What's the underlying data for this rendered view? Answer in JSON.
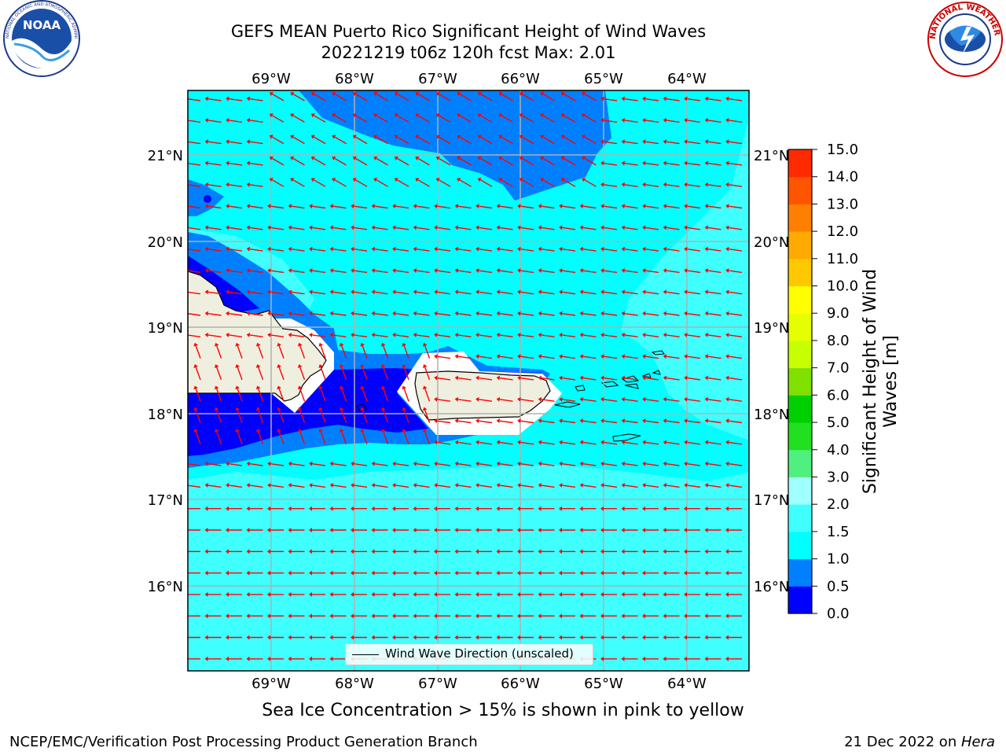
{
  "header": {
    "title_line1": "GEFS MEAN Puerto Rico Significant Height of Wind Waves",
    "title_line2": "20221219 t06z 120h fcst   Max: 2.01"
  },
  "logos": {
    "noaa": {
      "text": "NOAA",
      "ring_text": "NATIONAL OCEANIC AND ATMOSPHERIC ADMINISTRATION · U.S. DEPARTMENT OF COMMERCE"
    },
    "nws": {
      "ring_text": "NATIONAL WEATHER SERVICE"
    }
  },
  "map": {
    "lon_labels": [
      "69°W",
      "68°W",
      "67°W",
      "66°W",
      "65°W",
      "64°W"
    ],
    "lat_labels": [
      "21°N",
      "20°N",
      "19°N",
      "18°N",
      "17°N",
      "16°N"
    ],
    "legend_label": "Wind Wave Direction (unscaled)",
    "colors": {
      "ocean_high": "#00ffff",
      "ocean_low": "#0080ff",
      "ocean_min": "#0000ff",
      "ocean_light": "#40ffff",
      "land": "#efefdf",
      "arrow": "#ff0000",
      "grid": "#b0b0b0"
    }
  },
  "colorbar": {
    "label_line1": "Significant Height of Wind",
    "label_line2": "Waves [m]",
    "ticks": [
      "0.0",
      "0.5",
      "1.0",
      "1.5",
      "2.0",
      "3.0",
      "4.0",
      "5.0",
      "6.0",
      "7.0",
      "8.0",
      "9.0",
      "10.0",
      "11.0",
      "12.0",
      "13.0",
      "14.0",
      "15.0"
    ],
    "colors": [
      "#0000ff",
      "#0080ff",
      "#00ffff",
      "#40ffff",
      "#a0ffff",
      "#50f080",
      "#20e020",
      "#00d000",
      "#80e000",
      "#c8ff00",
      "#e6ff00",
      "#ffff00",
      "#ffc800",
      "#ffaa00",
      "#ff8000",
      "#ff5500",
      "#ff2a00",
      "#ff0000"
    ]
  },
  "footer": {
    "note": "Sea Ice Concentration > 15% is shown in pink to yellow",
    "credit": "NCEP/EMC/Verification Post Processing Product Generation Branch",
    "date": "21 Dec 2022 on ",
    "machine": "Hera"
  }
}
